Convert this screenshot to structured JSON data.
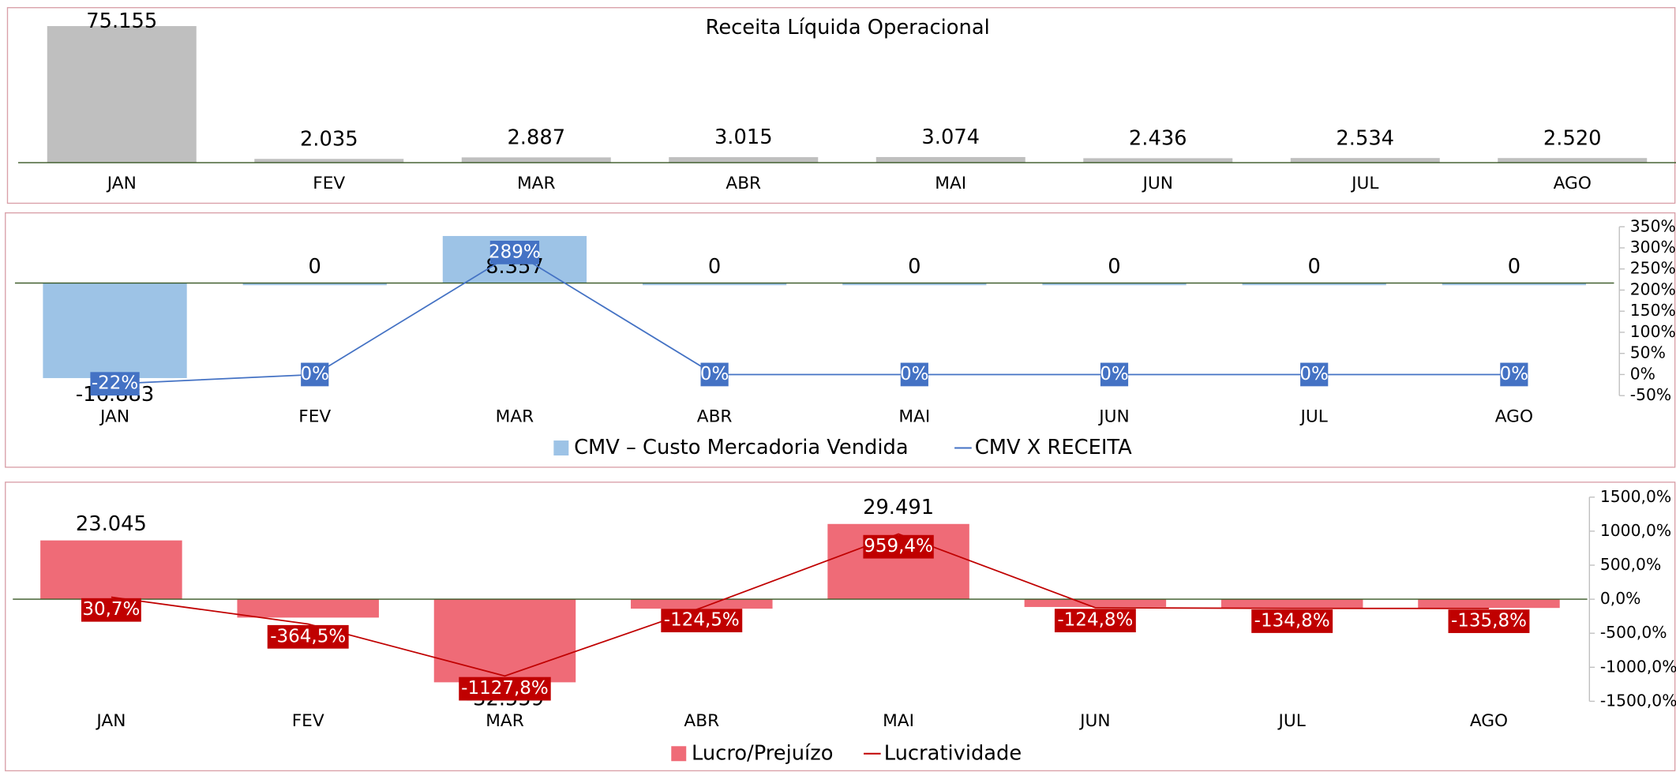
{
  "chart_data": [
    {
      "type": "bar",
      "title": "Receita Líquida Operacional",
      "categories": [
        "JAN",
        "FEV",
        "MAR",
        "ABR",
        "MAI",
        "JUN",
        "JUL",
        "AGO"
      ],
      "values": [
        75155,
        2035,
        2887,
        3015,
        3074,
        2436,
        2534,
        2520
      ],
      "value_labels": [
        "75.155",
        "2.035",
        "2.887",
        "3.015",
        "3.074",
        "2.436",
        "2.534",
        "2.520"
      ],
      "color": "#bfbfbf",
      "ylim": [
        0,
        80000
      ]
    },
    {
      "type": "combo",
      "categories": [
        "JAN",
        "FEV",
        "MAR",
        "ABR",
        "MAI",
        "JUN",
        "JUL",
        "AGO"
      ],
      "series": [
        {
          "name": "CMV – Custo Mercadoria Vendida",
          "type": "bar",
          "color": "#9dc3e6",
          "values": [
            -16883,
            0,
            8357,
            0,
            0,
            0,
            0,
            0
          ],
          "value_labels": [
            "-16.883",
            "0",
            "8.357",
            "0",
            "0",
            "0",
            "0",
            "0"
          ]
        },
        {
          "name": "CMV X RECEITA",
          "type": "line",
          "axis": "y2",
          "color": "#4472c4",
          "values": [
            -22,
            0,
            289,
            0,
            0,
            0,
            0,
            0
          ],
          "value_labels": [
            "-22%",
            "0%",
            "289%",
            "0%",
            "0%",
            "0%",
            "0%",
            "0%"
          ]
        }
      ],
      "ylim": [
        -20000,
        10000
      ],
      "y2lim": [
        -50,
        350
      ],
      "y2ticks": [
        {
          "value": -50,
          "label": "-50%"
        },
        {
          "value": 0,
          "label": "0%"
        },
        {
          "value": 50,
          "label": "50%"
        },
        {
          "value": 100,
          "label": "100%"
        },
        {
          "value": 150,
          "label": "150%"
        },
        {
          "value": 200,
          "label": "200%"
        },
        {
          "value": 250,
          "label": "250%"
        },
        {
          "value": 300,
          "label": "300%"
        },
        {
          "value": 350,
          "label": "350%"
        }
      ],
      "legend": "bottom"
    },
    {
      "type": "combo",
      "categories": [
        "JAN",
        "FEV",
        "MAR",
        "ABR",
        "MAI",
        "JUN",
        "JUL",
        "AGO"
      ],
      "series": [
        {
          "name": "Lucro/Prejuízo",
          "type": "bar",
          "color": "#ef6b77",
          "values": [
            23045,
            -7200,
            -32559,
            -3700,
            29491,
            -3041,
            -3417,
            -3422
          ],
          "value_labels": [
            "23.045",
            null,
            "-32.559",
            null,
            "29.491",
            "-3.041",
            "-3.417",
            "-3.422"
          ]
        },
        {
          "name": "Lucratividade",
          "type": "line",
          "axis": "y2",
          "color": "#c00000",
          "values": [
            30.7,
            -364.5,
            -1127.8,
            -124.5,
            959.4,
            -124.8,
            -134.8,
            -135.8
          ],
          "value_labels": [
            "30,7%",
            "-364,5%",
            "-1127,8%",
            "-124,5%",
            "959,4%",
            "-124,8%",
            "-134,8%",
            "-135,8%"
          ]
        }
      ],
      "ylim": [
        -40000,
        40000
      ],
      "y2lim": [
        -1500,
        1500
      ],
      "y2ticks": [
        {
          "value": -1500,
          "label": "-1500,0%"
        },
        {
          "value": -1000,
          "label": "-1000,0%"
        },
        {
          "value": -500,
          "label": "-500,0%"
        },
        {
          "value": 0,
          "label": "0,0%"
        },
        {
          "value": 500,
          "label": "500,0%"
        },
        {
          "value": 1000,
          "label": "1000,0%"
        },
        {
          "value": 1500,
          "label": "1500,0%"
        }
      ],
      "legend": "bottom"
    }
  ]
}
